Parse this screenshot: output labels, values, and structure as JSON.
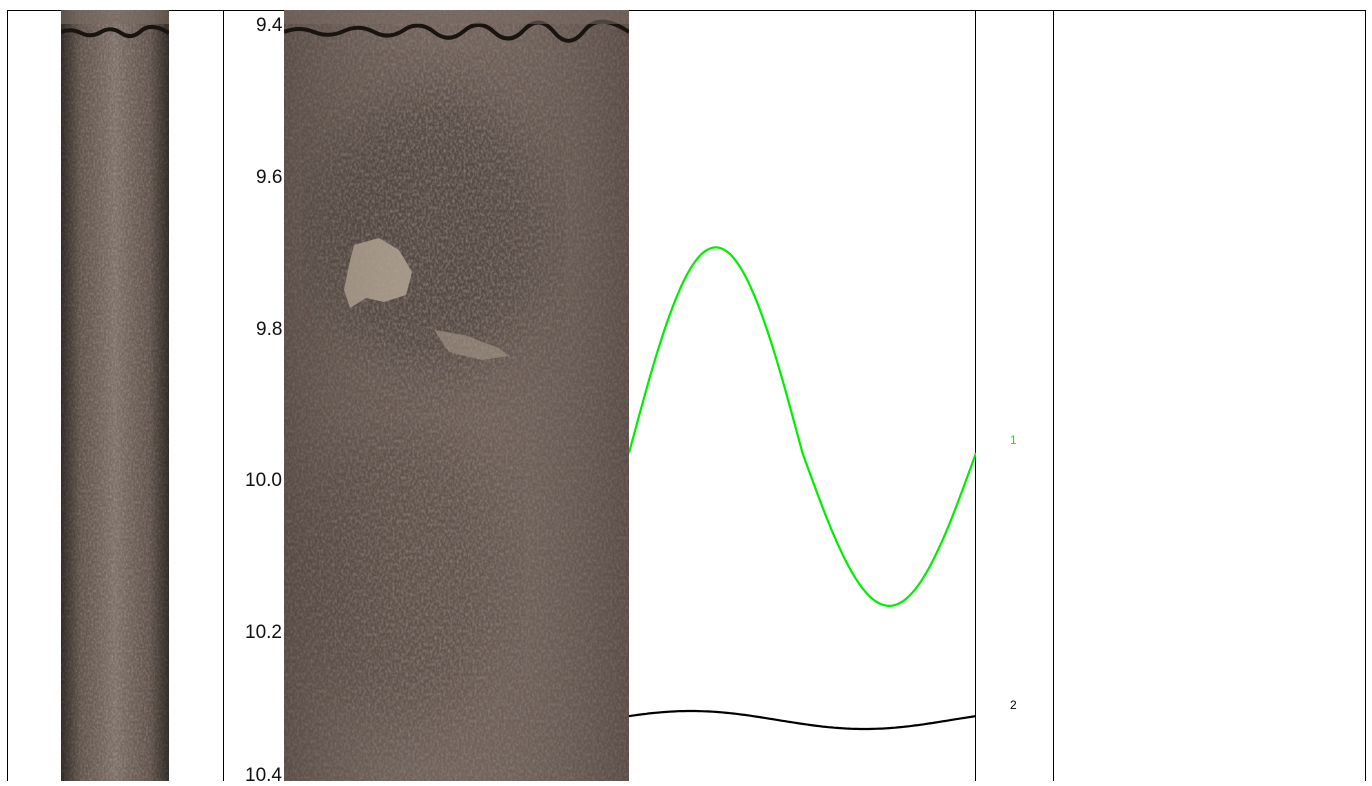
{
  "depth_track": {
    "unit": "m",
    "labels": [
      "9.4",
      "9.6",
      "9.8",
      "10.0",
      "10.2",
      "10.4"
    ]
  },
  "curve_track": {
    "curves": [
      {
        "label": "1",
        "color": "#00ee00"
      },
      {
        "label": "2",
        "color": "#000000"
      }
    ]
  },
  "colors": {
    "core_base": "#4d4039",
    "core_light": "#8a7a70",
    "core_dark": "#1e1814",
    "clast": "#b3a392"
  },
  "icons": {
    "core_photo_left": "borehole-unrolled-image",
    "core_photo_main": "borehole-core-image"
  }
}
